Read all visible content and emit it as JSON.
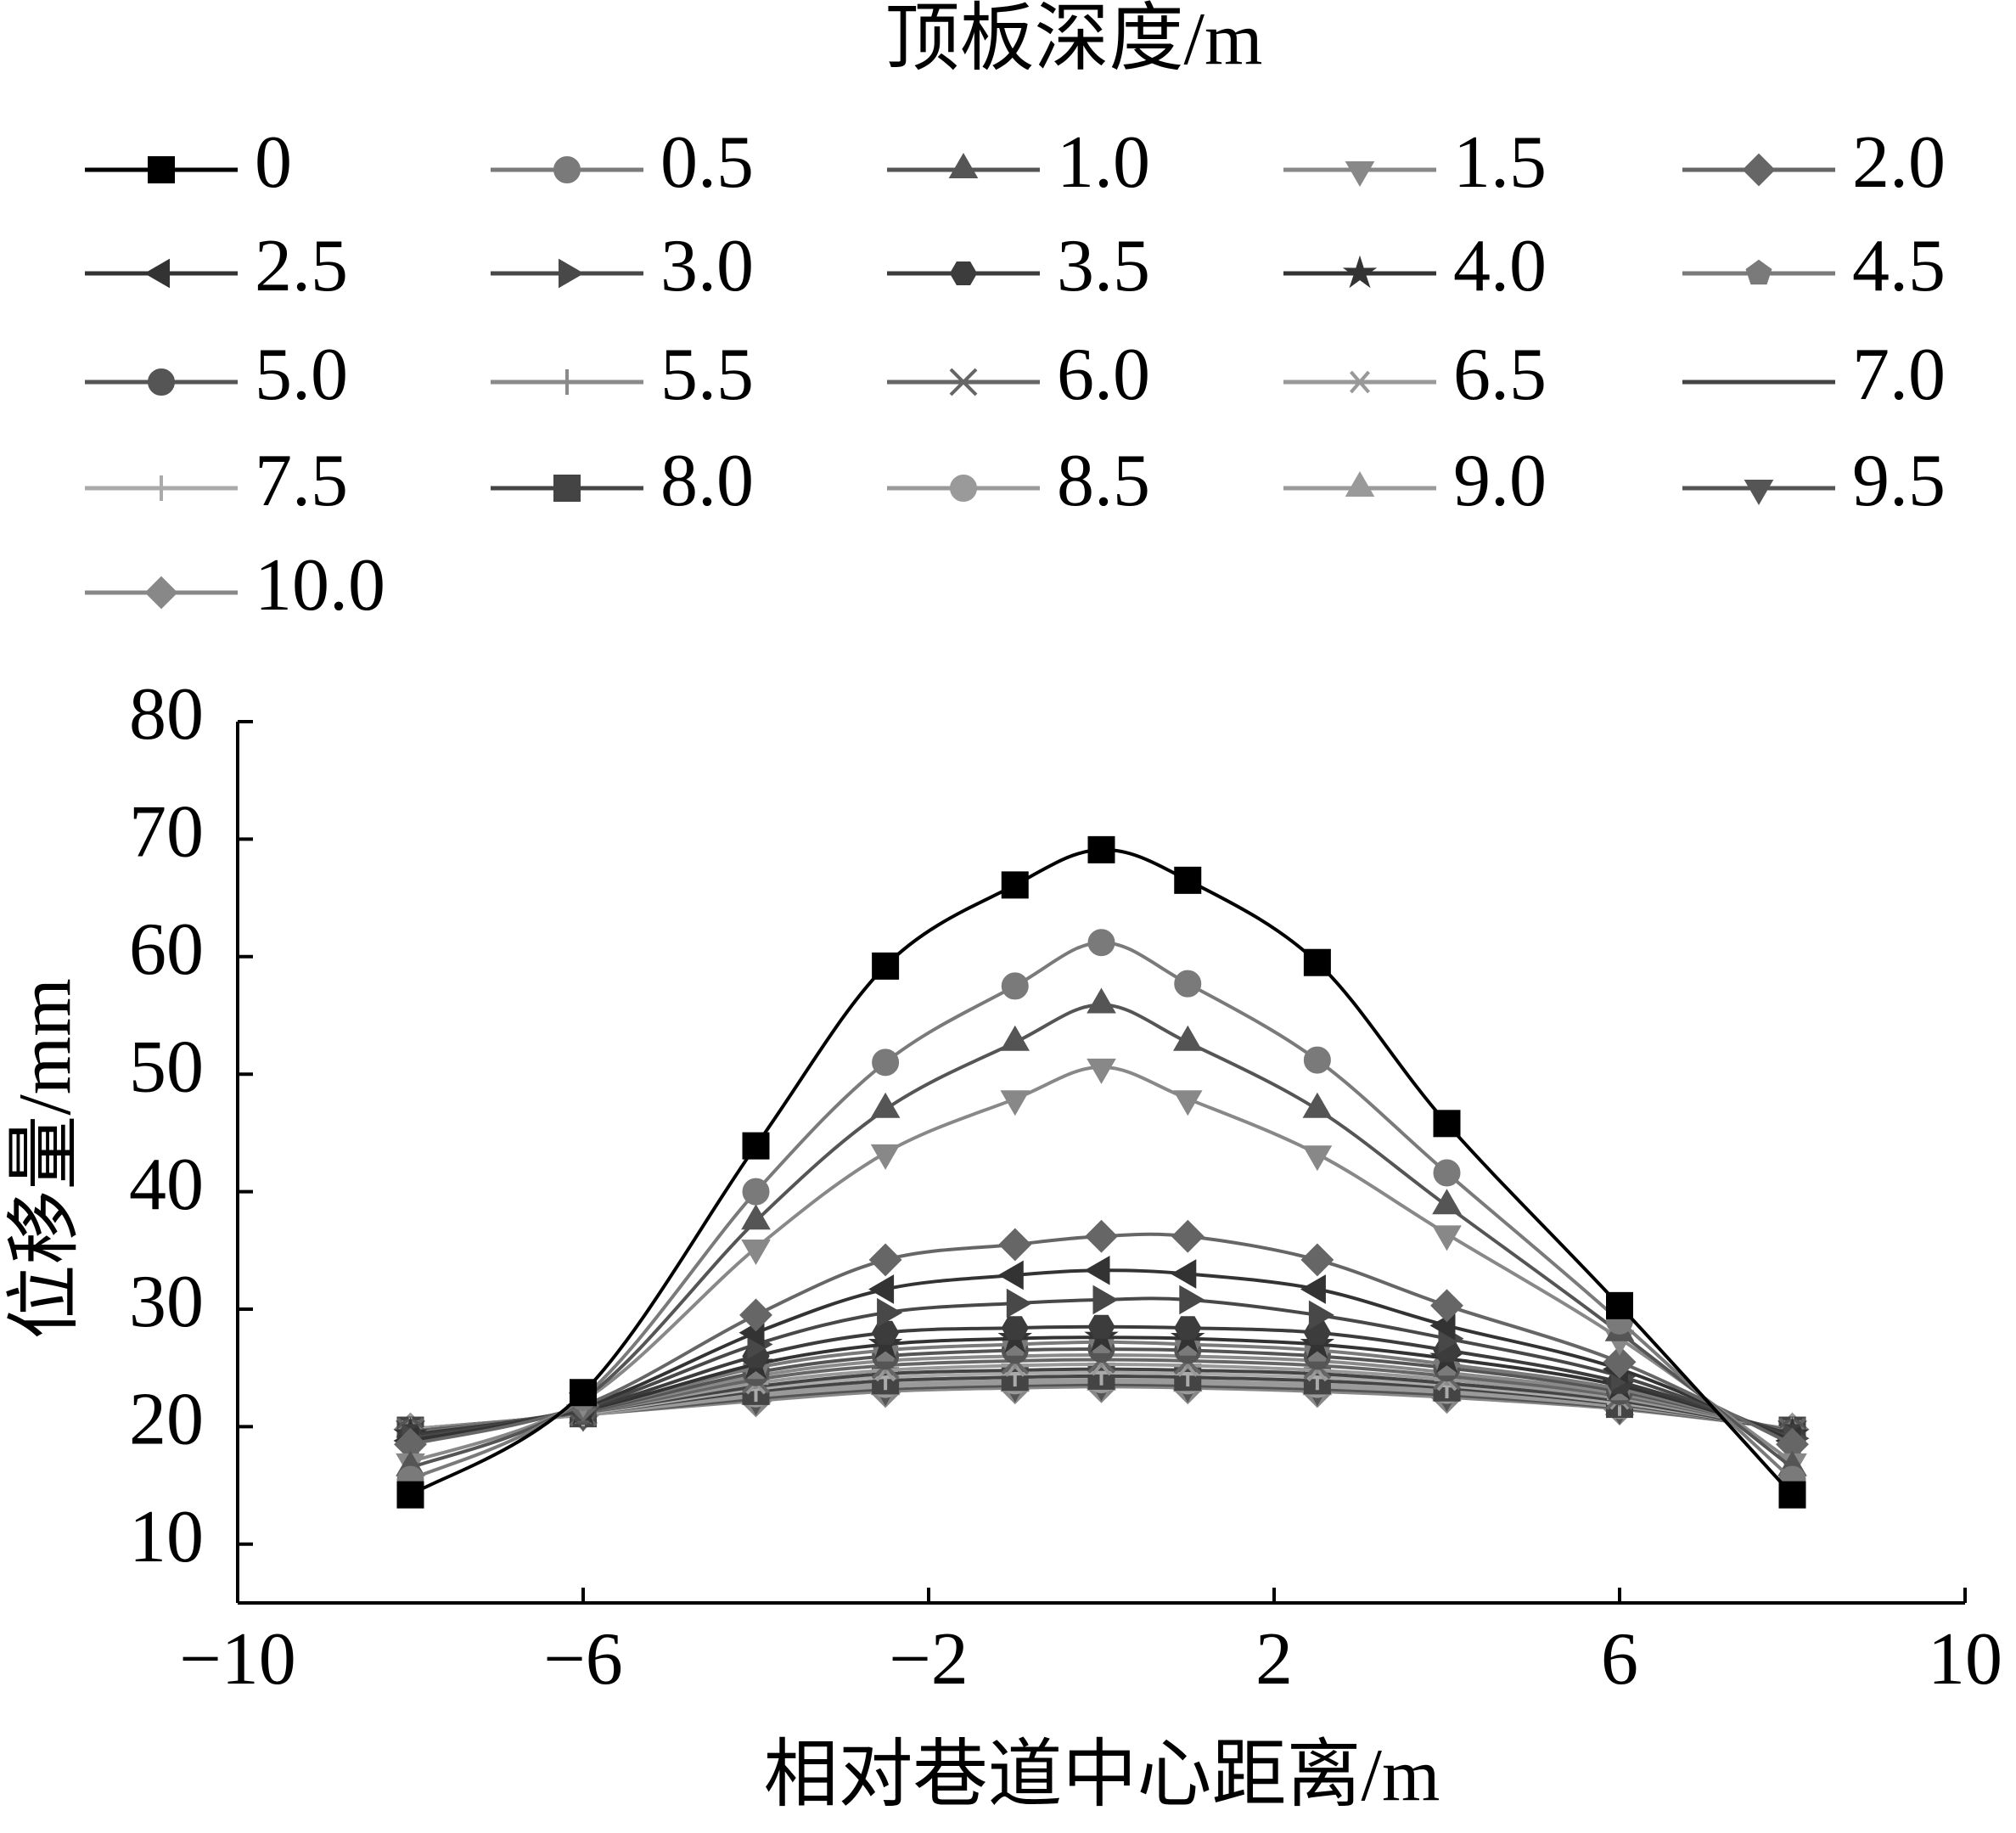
{
  "chart_data": {
    "type": "line",
    "legend_title": "顶板深度/m",
    "x_label": "相对巷道中心距离/m",
    "y_label": "位移量/mm",
    "x": [
      -8,
      -6,
      -4,
      -2.5,
      -1,
      0,
      1,
      2.5,
      4,
      6,
      8
    ],
    "xlim": [
      -10,
      10
    ],
    "xticks": [
      {
        "value": -10,
        "label": "−10"
      },
      {
        "value": -6,
        "label": "−6"
      },
      {
        "value": -2,
        "label": "−2"
      },
      2,
      6,
      10
    ],
    "ylim": [
      5,
      80
    ],
    "yticks": [
      10,
      20,
      30,
      40,
      50,
      60,
      70,
      80
    ],
    "smooth": true,
    "series": [
      {
        "name": "0",
        "color": "#000000",
        "marker": "square",
        "values": [
          14.2,
          22.9,
          43.9,
          59.2,
          66.1,
          69.1,
          66.5,
          59.5,
          45.8,
          30.3,
          14.2
        ]
      },
      {
        "name": "0.5",
        "color": "#7a7a7a",
        "marker": "circle",
        "values": [
          15.5,
          22.5,
          40,
          51,
          57.5,
          61.2,
          57.7,
          51.2,
          41.6,
          29,
          15.5
        ]
      },
      {
        "name": "1.0",
        "color": "#555555",
        "marker": "triangle-up",
        "values": [
          16.5,
          22.3,
          37.5,
          47,
          52.7,
          55.9,
          52.7,
          47,
          38.8,
          28,
          16.5
        ]
      },
      {
        "name": "1.5",
        "color": "#888888",
        "marker": "triangle-down",
        "values": [
          17,
          22.2,
          35.2,
          43.3,
          47.9,
          50.6,
          47.9,
          43.2,
          36.4,
          27.5,
          17
        ]
      },
      {
        "name": "2.0",
        "color": "#666666",
        "marker": "diamond",
        "values": [
          18.5,
          21.8,
          29.5,
          34.2,
          35.5,
          36.2,
          36.2,
          34.2,
          30.3,
          25.5,
          18.5
        ]
      },
      {
        "name": "2.5",
        "color": "#333333",
        "marker": "triangle-left",
        "values": [
          18.8,
          21.7,
          28,
          31.7,
          32.9,
          33.3,
          33,
          31.7,
          28.6,
          24.9,
          18.8
        ]
      },
      {
        "name": "3.0",
        "color": "#484848",
        "marker": "triangle-right",
        "values": [
          19,
          21.6,
          27,
          29.7,
          30.5,
          30.8,
          30.8,
          29.5,
          27.5,
          24.3,
          19
        ]
      },
      {
        "name": "3.5",
        "color": "#3c3c3c",
        "marker": "hexagon",
        "values": [
          19.2,
          21.5,
          26,
          28,
          28.4,
          28.5,
          28.4,
          28,
          26.5,
          23.8,
          19.2
        ]
      },
      {
        "name": "4.0",
        "color": "#333333",
        "marker": "star",
        "values": [
          19.3,
          21.4,
          25.3,
          27,
          27.5,
          27.6,
          27.5,
          27,
          25.8,
          23.5,
          19.3
        ]
      },
      {
        "name": "4.5",
        "color": "#7a7a7a",
        "marker": "pentagon",
        "values": [
          19.4,
          21.4,
          25,
          26.5,
          27,
          27.2,
          27,
          26.5,
          25.3,
          23.2,
          19.4
        ]
      },
      {
        "name": "5.0",
        "color": "#555555",
        "marker": "sphere",
        "values": [
          19.5,
          21.3,
          24.6,
          26,
          26.5,
          26.6,
          26.5,
          26,
          25,
          23,
          19.5
        ]
      },
      {
        "name": "5.5",
        "color": "#8a8a8a",
        "marker": "plus",
        "values": [
          19.5,
          21.3,
          24.3,
          25.6,
          26,
          26.1,
          26,
          25.6,
          24.6,
          22.8,
          19.5
        ]
      },
      {
        "name": "6.0",
        "color": "#666666",
        "marker": "x",
        "values": [
          19.6,
          21.2,
          24,
          25.2,
          25.6,
          25.7,
          25.6,
          25.2,
          24.3,
          22.6,
          19.6
        ]
      },
      {
        "name": "6.5",
        "color": "#999999",
        "marker": "asterisk",
        "values": [
          19.6,
          21.2,
          23.7,
          24.8,
          25.2,
          25.3,
          25.2,
          24.8,
          24,
          22.4,
          19.6
        ]
      },
      {
        "name": "7.0",
        "color": "#444444",
        "marker": "none",
        "values": [
          19.6,
          21.2,
          23.4,
          24.5,
          24.8,
          24.9,
          24.8,
          24.5,
          23.7,
          22.2,
          19.6
        ]
      },
      {
        "name": "7.5",
        "color": "#aaaaaa",
        "marker": "plus",
        "values": [
          19.7,
          21.1,
          23.2,
          24.2,
          24.5,
          24.6,
          24.5,
          24.2,
          23.5,
          22,
          19.7
        ]
      },
      {
        "name": "8.0",
        "color": "#444444",
        "marker": "square",
        "values": [
          19.7,
          21.1,
          23,
          23.9,
          24.2,
          24.3,
          24.2,
          23.9,
          23.3,
          21.9,
          19.7
        ]
      },
      {
        "name": "8.5",
        "color": "#9a9a9a",
        "marker": "circle",
        "values": [
          19.7,
          21.1,
          22.8,
          23.6,
          23.9,
          24,
          23.9,
          23.6,
          23.1,
          21.8,
          19.7
        ]
      },
      {
        "name": "9.0",
        "color": "#9a9a9a",
        "marker": "triangle-up",
        "values": [
          19.8,
          21,
          22.6,
          23.4,
          23.7,
          23.8,
          23.7,
          23.4,
          22.9,
          21.7,
          19.8
        ]
      },
      {
        "name": "9.5",
        "color": "#555555",
        "marker": "triangle-down",
        "values": [
          19.8,
          21,
          22.4,
          23.2,
          23.5,
          23.6,
          23.5,
          23.2,
          22.7,
          21.6,
          19.8
        ]
      },
      {
        "name": "10.0",
        "color": "#888888",
        "marker": "diamond",
        "values": [
          19.8,
          21,
          22.2,
          23,
          23.3,
          23.4,
          23.3,
          23,
          22.5,
          21.5,
          19.8
        ]
      }
    ]
  }
}
